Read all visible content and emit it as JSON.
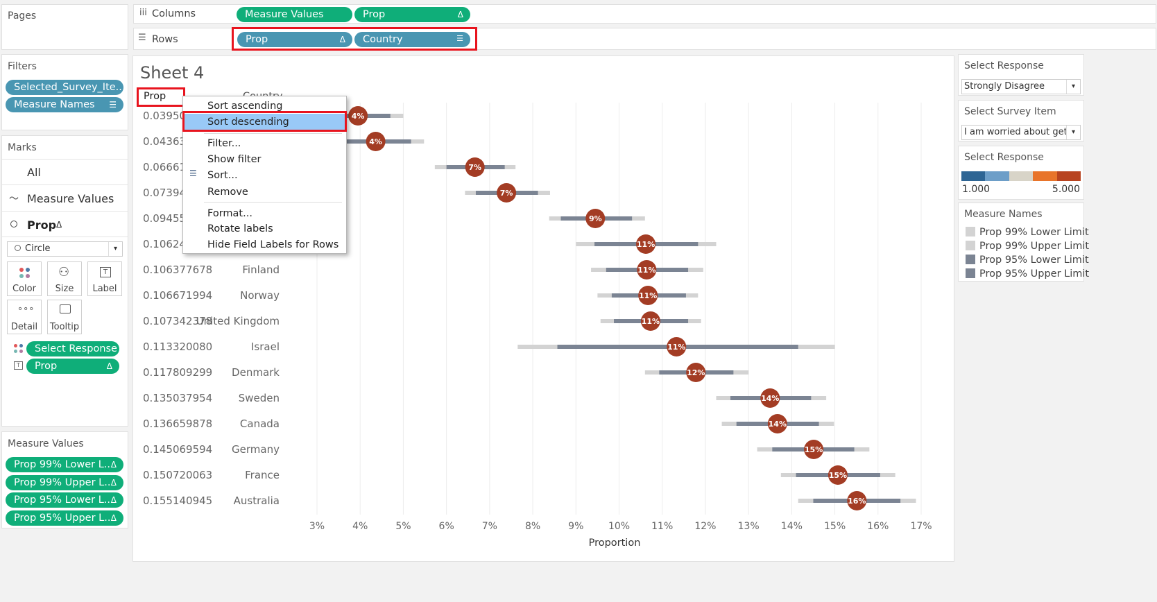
{
  "pages": {
    "title": "Pages"
  },
  "shelves": {
    "columns_label": "Columns",
    "rows_label": "Rows",
    "columns": [
      {
        "label": "Measure Values",
        "icon": ""
      },
      {
        "label": "Prop",
        "icon": "Δ"
      }
    ],
    "rows": [
      {
        "label": "Prop",
        "icon": "Δ"
      },
      {
        "label": "Country",
        "icon": "sort-icon"
      }
    ]
  },
  "filters": {
    "title": "Filters",
    "items": [
      "Selected_Survey_Ite..",
      "Measure Names"
    ]
  },
  "marks": {
    "title": "Marks",
    "all": "All",
    "measure_values": "Measure Values",
    "prop": "Prop",
    "prop_icon": "Δ",
    "mark_type": "Circle",
    "buttons": [
      "Color",
      "Size",
      "Label",
      "Detail",
      "Tooltip"
    ],
    "fields": [
      {
        "label": "Select Response",
        "icon": ""
      },
      {
        "label": "Prop",
        "icon": "Δ"
      }
    ]
  },
  "measure_values": {
    "title": "Measure Values",
    "items": [
      "Prop 99% Lower L..",
      "Prop 99% Upper L..",
      "Prop 95% Lower L..",
      "Prop 95% Upper L.."
    ],
    "icon": "Δ"
  },
  "sheet": {
    "title": "Sheet 4",
    "col_header_prop": "Prop",
    "col_header_country": "Country",
    "x_axis_title": "Proportion"
  },
  "context_menu": {
    "items": [
      "Sort ascending",
      "Sort descending",
      "Filter...",
      "Show filter",
      "Sort...",
      "Remove",
      "Format...",
      "Rotate labels",
      "Hide Field Labels for Rows"
    ],
    "highlighted": "Sort descending"
  },
  "chart_data": {
    "type": "scatter",
    "xlabel": "Proportion",
    "xlim": [
      0.03,
      0.17
    ],
    "x_ticks": [
      "3%",
      "4%",
      "5%",
      "6%",
      "7%",
      "8%",
      "9%",
      "10%",
      "11%",
      "12%",
      "13%",
      "14%",
      "15%",
      "16%",
      "17%"
    ],
    "x_tick_values": [
      0.03,
      0.04,
      0.05,
      0.06,
      0.07,
      0.08,
      0.09,
      0.1,
      0.11,
      0.12,
      0.13,
      0.14,
      0.15,
      0.16,
      0.17
    ],
    "rows": [
      {
        "prop": "0.039505",
        "country": "",
        "value": 0.0395,
        "lo99": 0.03,
        "lo95": 0.0345,
        "hi95": 0.047,
        "hi99": 0.05,
        "label": "4%"
      },
      {
        "prop": "0.043636",
        "country": "",
        "value": 0.0436,
        "lo99": 0.032,
        "lo95": 0.036,
        "hi95": 0.0518,
        "hi99": 0.0548,
        "label": "4%"
      },
      {
        "prop": "0.066613",
        "country": "",
        "value": 0.0666,
        "lo99": 0.0573,
        "lo95": 0.06,
        "hi95": 0.0735,
        "hi99": 0.076,
        "label": "7%"
      },
      {
        "prop": "0.073948",
        "country": "",
        "value": 0.0739,
        "lo99": 0.0643,
        "lo95": 0.0668,
        "hi95": 0.0812,
        "hi99": 0.084,
        "label": "7%"
      },
      {
        "prop": "0.094554",
        "country": "",
        "value": 0.0945,
        "lo99": 0.0838,
        "lo95": 0.0865,
        "hi95": 0.103,
        "hi99": 0.106,
        "label": "9%"
      },
      {
        "prop": "0.106240",
        "country": "",
        "value": 0.1062,
        "lo99": 0.09,
        "lo95": 0.0943,
        "hi95": 0.1183,
        "hi99": 0.1225,
        "label": "11%"
      },
      {
        "prop": "0.106377678",
        "country": "Finland",
        "value": 0.1064,
        "lo99": 0.0935,
        "lo95": 0.097,
        "hi95": 0.116,
        "hi99": 0.1195,
        "label": "11%"
      },
      {
        "prop": "0.106671994",
        "country": "Norway",
        "value": 0.1067,
        "lo99": 0.095,
        "lo95": 0.0983,
        "hi95": 0.1155,
        "hi99": 0.1183,
        "label": "11%"
      },
      {
        "prop": "0.107342378",
        "country": "United Kingdom",
        "value": 0.1073,
        "lo99": 0.0957,
        "lo95": 0.0988,
        "hi95": 0.116,
        "hi99": 0.119,
        "label": "11%"
      },
      {
        "prop": "0.113320080",
        "country": "Israel",
        "value": 0.1133,
        "lo99": 0.0765,
        "lo95": 0.0857,
        "hi95": 0.1415,
        "hi99": 0.15,
        "label": "11%"
      },
      {
        "prop": "0.117809299",
        "country": "Denmark",
        "value": 0.1178,
        "lo99": 0.106,
        "lo95": 0.1093,
        "hi95": 0.1265,
        "hi99": 0.13,
        "label": "12%"
      },
      {
        "prop": "0.135037954",
        "country": "Sweden",
        "value": 0.135,
        "lo99": 0.1225,
        "lo95": 0.1258,
        "hi95": 0.1445,
        "hi99": 0.148,
        "label": "14%"
      },
      {
        "prop": "0.136659878",
        "country": "Canada",
        "value": 0.1367,
        "lo99": 0.1238,
        "lo95": 0.1272,
        "hi95": 0.1463,
        "hi99": 0.1498,
        "label": "14%"
      },
      {
        "prop": "0.145069594",
        "country": "Germany",
        "value": 0.1451,
        "lo99": 0.132,
        "lo95": 0.1355,
        "hi95": 0.1545,
        "hi99": 0.158,
        "label": "15%"
      },
      {
        "prop": "0.150720063",
        "country": "France",
        "value": 0.1507,
        "lo99": 0.1375,
        "lo95": 0.141,
        "hi95": 0.1605,
        "hi99": 0.164,
        "label": "15%"
      },
      {
        "prop": "0.155140945",
        "country": "Australia",
        "value": 0.1551,
        "lo99": 0.1415,
        "lo95": 0.145,
        "hi95": 0.1652,
        "hi99": 0.1688,
        "label": "16%"
      }
    ],
    "colors": {
      "ci99": "#d3d3d3",
      "ci95": "#7b8493",
      "mark": "#a33c24"
    }
  },
  "right_panels": {
    "select_response": {
      "title": "Select Response",
      "value": "Strongly Disagree"
    },
    "select_survey_item": {
      "title": "Select Survey Item",
      "value": "I am worried about getti..."
    },
    "color_legend": {
      "title": "Select Response",
      "min": "1.000",
      "max": "5.000",
      "colors": [
        "#2e6594",
        "#6d9ec8",
        "#d8d4c8",
        "#e8742a",
        "#b8431f"
      ]
    },
    "measure_names": {
      "title": "Measure Names",
      "items": [
        {
          "label": "Prop 99% Lower Limit",
          "color": "#d3d3d3"
        },
        {
          "label": "Prop 99% Upper Limit",
          "color": "#d3d3d3"
        },
        {
          "label": "Prop 95% Lower Limit",
          "color": "#7b8493"
        },
        {
          "label": "Prop 95% Upper Limit",
          "color": "#7b8493"
        }
      ]
    }
  }
}
